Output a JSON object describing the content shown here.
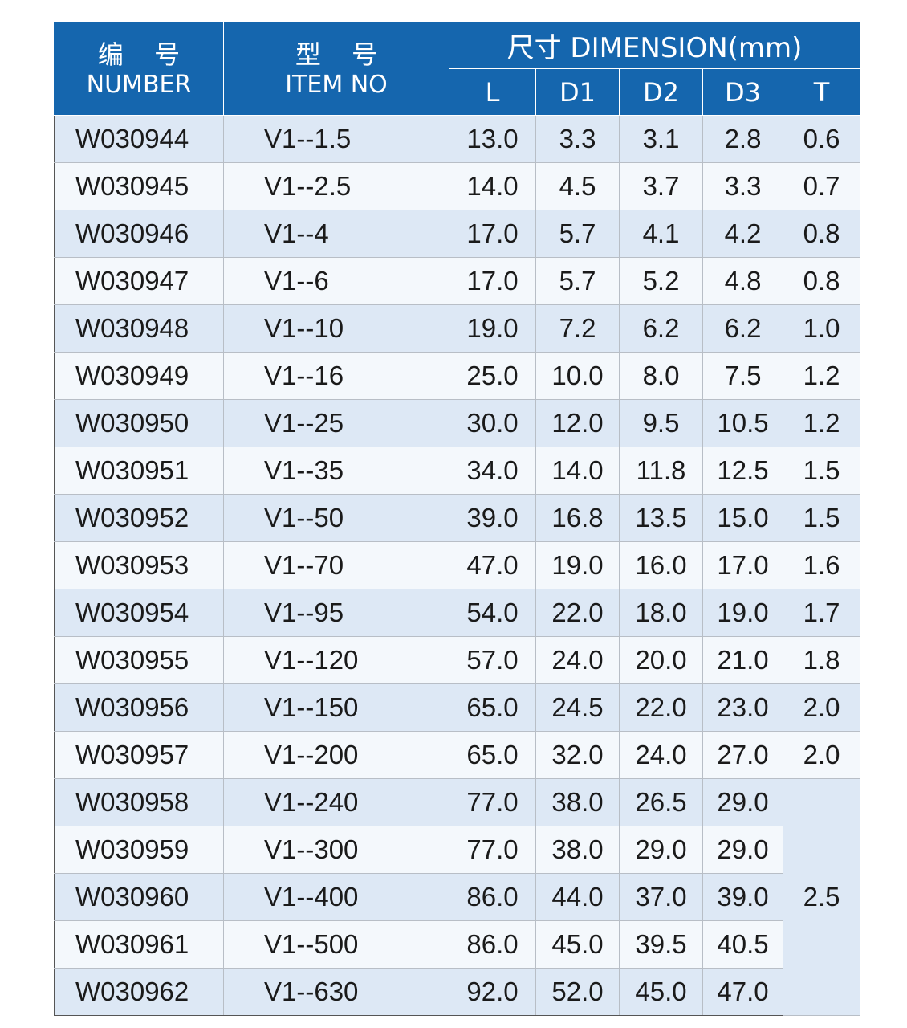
{
  "header": {
    "number_cn": "编 号",
    "number_en": "NUMBER",
    "item_cn": "型 号",
    "item_en": "ITEM NO",
    "dimension": "尺寸 DIMENSION(mm)",
    "columns": [
      "L",
      "D1",
      "D2",
      "D3",
      "T"
    ]
  },
  "rows": [
    {
      "number": "W030944",
      "item": "V1--1.5",
      "L": "13.0",
      "D1": "3.3",
      "D2": "3.1",
      "D3": "2.8",
      "T": "0.6"
    },
    {
      "number": "W030945",
      "item": "V1--2.5",
      "L": "14.0",
      "D1": "4.5",
      "D2": "3.7",
      "D3": "3.3",
      "T": "0.7"
    },
    {
      "number": "W030946",
      "item": "V1--4",
      "L": "17.0",
      "D1": "5.7",
      "D2": "4.1",
      "D3": "4.2",
      "T": "0.8"
    },
    {
      "number": "W030947",
      "item": "V1--6",
      "L": "17.0",
      "D1": "5.7",
      "D2": "5.2",
      "D3": "4.8",
      "T": "0.8"
    },
    {
      "number": "W030948",
      "item": "V1--10",
      "L": "19.0",
      "D1": "7.2",
      "D2": "6.2",
      "D3": "6.2",
      "T": "1.0"
    },
    {
      "number": "W030949",
      "item": "V1--16",
      "L": "25.0",
      "D1": "10.0",
      "D2": "8.0",
      "D3": "7.5",
      "T": "1.2"
    },
    {
      "number": "W030950",
      "item": "V1--25",
      "L": "30.0",
      "D1": "12.0",
      "D2": "9.5",
      "D3": "10.5",
      "T": "1.2"
    },
    {
      "number": "W030951",
      "item": "V1--35",
      "L": "34.0",
      "D1": "14.0",
      "D2": "11.8",
      "D3": "12.5",
      "T": "1.5"
    },
    {
      "number": "W030952",
      "item": "V1--50",
      "L": "39.0",
      "D1": "16.8",
      "D2": "13.5",
      "D3": "15.0",
      "T": "1.5"
    },
    {
      "number": "W030953",
      "item": "V1--70",
      "L": "47.0",
      "D1": "19.0",
      "D2": "16.0",
      "D3": "17.0",
      "T": "1.6"
    },
    {
      "number": "W030954",
      "item": "V1--95",
      "L": "54.0",
      "D1": "22.0",
      "D2": "18.0",
      "D3": "19.0",
      "T": "1.7"
    },
    {
      "number": "W030955",
      "item": "V1--120",
      "L": "57.0",
      "D1": "24.0",
      "D2": "20.0",
      "D3": "21.0",
      "T": "1.8"
    },
    {
      "number": "W030956",
      "item": "V1--150",
      "L": "65.0",
      "D1": "24.5",
      "D2": "22.0",
      "D3": "23.0",
      "T": "2.0"
    },
    {
      "number": "W030957",
      "item": "V1--200",
      "L": "65.0",
      "D1": "32.0",
      "D2": "24.0",
      "D3": "27.0",
      "T": "2.0"
    },
    {
      "number": "W030958",
      "item": "V1--240",
      "L": "77.0",
      "D1": "38.0",
      "D2": "26.5",
      "D3": "29.0"
    },
    {
      "number": "W030959",
      "item": "V1--300",
      "L": "77.0",
      "D1": "38.0",
      "D2": "29.0",
      "D3": "29.0"
    },
    {
      "number": "W030960",
      "item": "V1--400",
      "L": "86.0",
      "D1": "44.0",
      "D2": "37.0",
      "D3": "39.0"
    },
    {
      "number": "W030961",
      "item": "V1--500",
      "L": "86.0",
      "D1": "45.0",
      "D2": "39.5",
      "D3": "40.5"
    },
    {
      "number": "W030962",
      "item": "V1--630",
      "L": "92.0",
      "D1": "52.0",
      "D2": "45.0",
      "D3": "47.0"
    }
  ],
  "merged_t": {
    "value": "2.5"
  },
  "colors": {
    "header_bg": "#1566ae",
    "row_odd": "#dde8f5",
    "row_even": "#f4f8fc"
  }
}
